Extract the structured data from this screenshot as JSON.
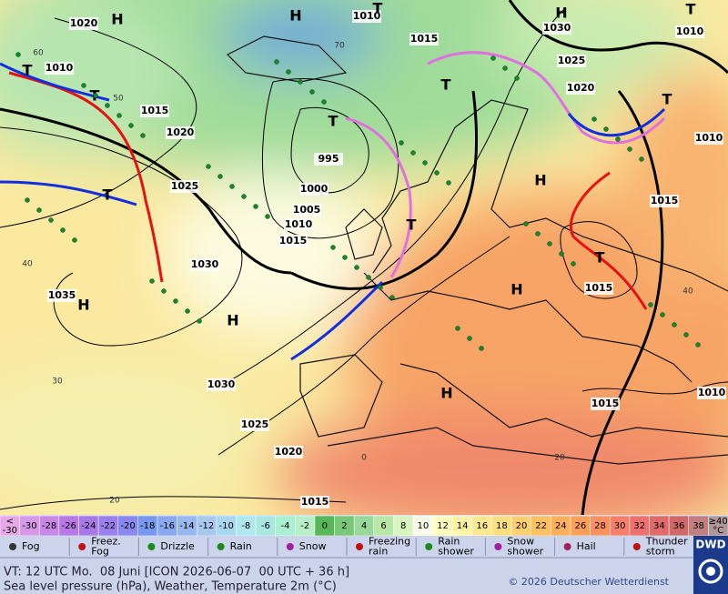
{
  "map": {
    "isobar_labels": [
      "1020",
      "1010",
      "1015",
      "1030",
      "1010",
      "1010",
      "1025",
      "1020",
      "1015",
      "1020",
      "1010",
      "995",
      "1025",
      "1000",
      "1015",
      "1005",
      "1010",
      "1015",
      "1030",
      "1035",
      "1015",
      "1030",
      "1015",
      "1010",
      "1025",
      "1020",
      "1015"
    ],
    "pressure_centers": [
      "H",
      "H",
      "T",
      "H",
      "T",
      "T",
      "T",
      "T",
      "T",
      "T",
      "H",
      "T",
      "T",
      "H",
      "H",
      "H",
      "T",
      "H"
    ],
    "grid_labels": [
      "60",
      "50",
      "70",
      "40",
      "30",
      "20",
      "40",
      "0",
      "20"
    ]
  },
  "color_scale": [
    {
      "label": "<\n-30",
      "color": "#e8a8e8"
    },
    {
      "label": "-30",
      "color": "#d898e8"
    },
    {
      "label": "-28",
      "color": "#c888e8"
    },
    {
      "label": "-26",
      "color": "#b878e8"
    },
    {
      "label": "-24",
      "color": "#a878e8"
    },
    {
      "label": "-22",
      "color": "#9a80ee"
    },
    {
      "label": "-20",
      "color": "#8888f0"
    },
    {
      "label": "-18",
      "color": "#7898f0"
    },
    {
      "label": "-16",
      "color": "#88a8f0"
    },
    {
      "label": "-14",
      "color": "#98b8f0"
    },
    {
      "label": "-12",
      "color": "#a8c8f0"
    },
    {
      "label": "-10",
      "color": "#a8d8f0"
    },
    {
      "label": "-8",
      "color": "#b0e8f0"
    },
    {
      "label": "-6",
      "color": "#a8e8e0"
    },
    {
      "label": "-4",
      "color": "#a8f0d0"
    },
    {
      "label": "-2",
      "color": "#b8f0c8"
    },
    {
      "label": "0",
      "color": "#58b858"
    },
    {
      "label": "2",
      "color": "#78c878"
    },
    {
      "label": "4",
      "color": "#98d898"
    },
    {
      "label": "6",
      "color": "#b8e8a8"
    },
    {
      "label": "8",
      "color": "#d8f5c0"
    },
    {
      "label": "10",
      "color": "#fafae8"
    },
    {
      "label": "12",
      "color": "#ffffc0"
    },
    {
      "label": "14",
      "color": "#fff4a8"
    },
    {
      "label": "16",
      "color": "#ffe890"
    },
    {
      "label": "18",
      "color": "#ffdf80"
    },
    {
      "label": "20",
      "color": "#ffd070"
    },
    {
      "label": "22",
      "color": "#ffc060"
    },
    {
      "label": "24",
      "color": "#ffb058"
    },
    {
      "label": "26",
      "color": "#ffa058"
    },
    {
      "label": "28",
      "color": "#ff9060"
    },
    {
      "label": "30",
      "color": "#f88068"
    },
    {
      "label": "32",
      "color": "#f07070"
    },
    {
      "label": "34",
      "color": "#e06a6a"
    },
    {
      "label": "36",
      "color": "#d06868"
    },
    {
      "label": "38",
      "color": "#c08080"
    },
    {
      "label": "≥40\n°C",
      "color": "#b09898"
    }
  ],
  "weather_legend": [
    "Fog",
    "Freez.\nFog",
    "Drizzle",
    "Rain",
    "Snow",
    "Freezing\nrain",
    "Rain\nshower",
    "Snow\nshower",
    "Hail",
    "Thunder\nstorm"
  ],
  "logo": "DWD",
  "footer": {
    "valid_time": "VT: 12 UTC Mo.  08 Juni [ICON 2026-06-07  00 UTC + 36 h]",
    "description": "Sea level pressure (hPa), Weather, Temperature 2m (°C)",
    "copyright": "© 2026 Deutscher Wetterdienst"
  }
}
